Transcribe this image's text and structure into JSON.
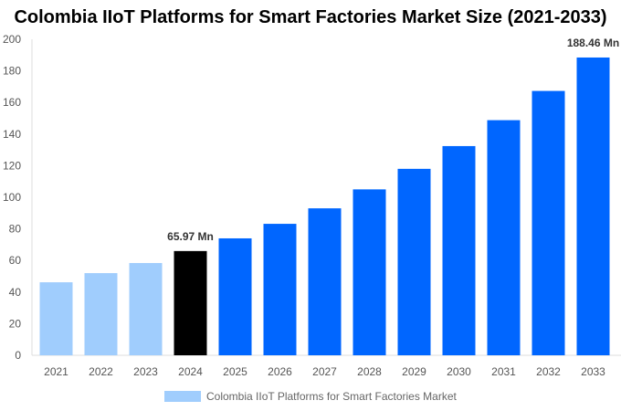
{
  "chart_data": {
    "type": "bar",
    "title": "Colombia IIoT Platforms for Smart Factories Market Size (2021-2033)",
    "categories": [
      "2021",
      "2022",
      "2023",
      "2024",
      "2025",
      "2026",
      "2027",
      "2028",
      "2029",
      "2030",
      "2031",
      "2032",
      "2033"
    ],
    "series": [
      {
        "name": "Colombia IIoT Platforms for Smart Factories Market",
        "values": [
          46.2,
          52.0,
          58.4,
          65.97,
          74.0,
          83.2,
          93.0,
          105.0,
          118.0,
          132.4,
          148.8,
          167.3,
          188.46
        ]
      }
    ],
    "data_labels": {
      "3": "65.97 Mn",
      "12": "188.46 Mn"
    },
    "ylim": [
      0,
      200
    ],
    "yticks": [
      0,
      20,
      40,
      60,
      80,
      100,
      120,
      140,
      160,
      180,
      200
    ],
    "grid": false,
    "legend": "bottom",
    "colors": {
      "historical": "#a0cdfd",
      "base_year": "#000000",
      "forecast": "#0066ff"
    }
  }
}
